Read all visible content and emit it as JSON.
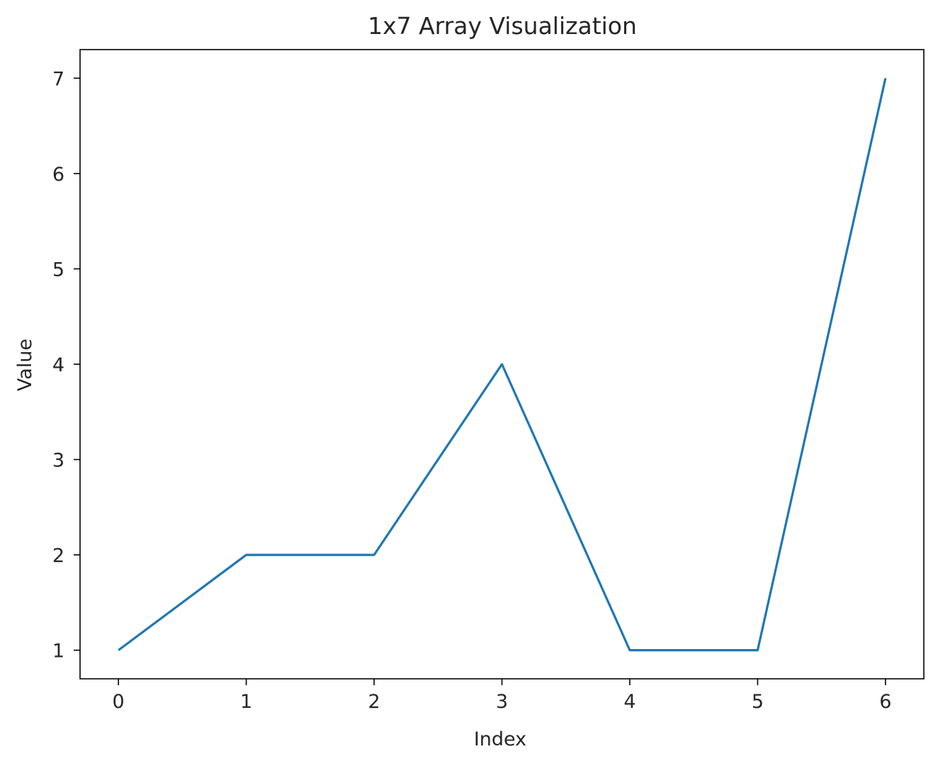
{
  "chart_data": {
    "type": "line",
    "title": "1x7 Array Visualization",
    "xlabel": "Index",
    "ylabel": "Value",
    "x": [
      0,
      1,
      2,
      3,
      4,
      5,
      6
    ],
    "series": [
      {
        "values": [
          1,
          2,
          2,
          4,
          1,
          1,
          7
        ],
        "color": "#1f77b4"
      }
    ],
    "xlim": [
      -0.3,
      6.3
    ],
    "ylim": [
      0.7,
      7.3
    ],
    "xticks": [
      0,
      1,
      2,
      3,
      4,
      5,
      6
    ],
    "yticks": [
      1,
      2,
      3,
      4,
      5,
      6,
      7
    ],
    "grid": false,
    "legend": false
  }
}
